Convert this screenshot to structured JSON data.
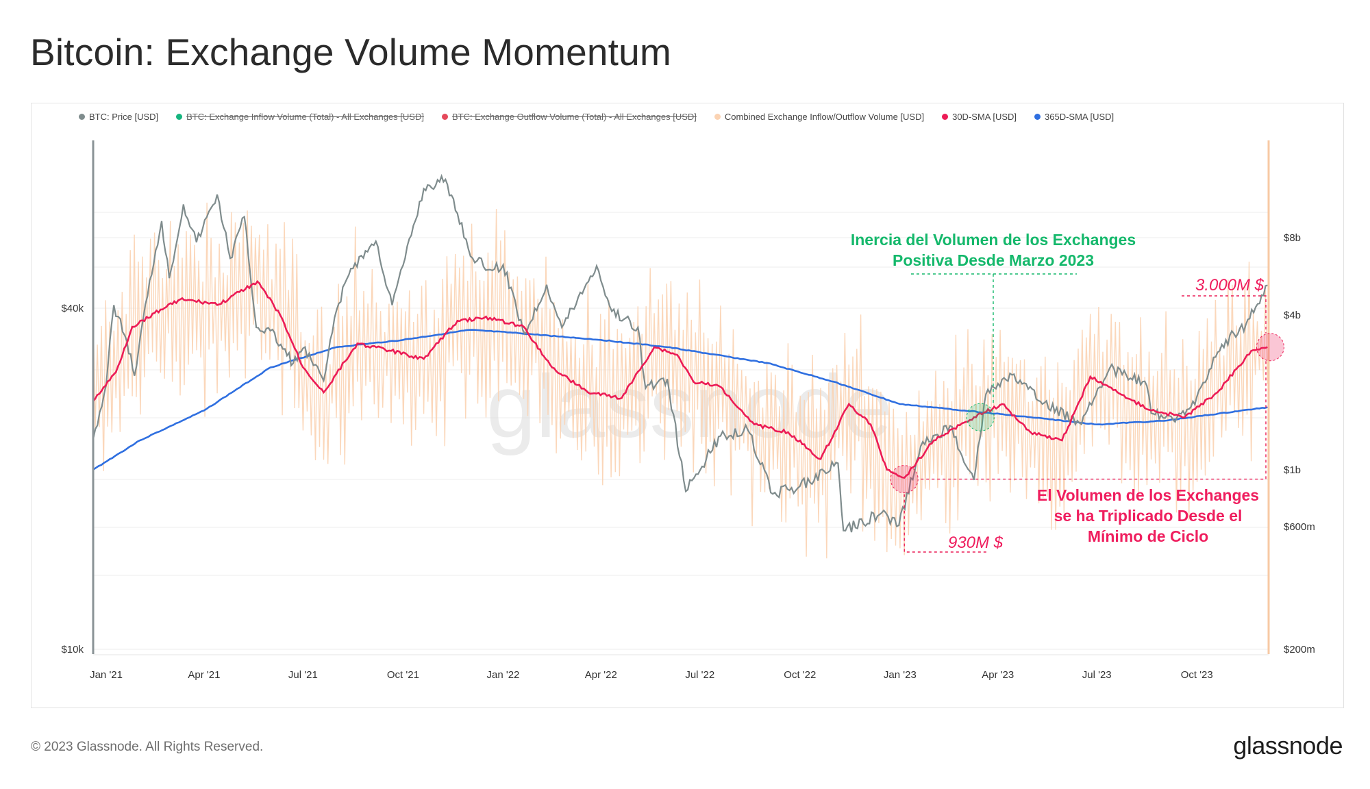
{
  "title": "Bitcoin: Exchange Volume Momentum",
  "footer": {
    "copyright": "© 2023 Glassnode. All Rights Reserved.",
    "logo_text": "glassnode"
  },
  "watermark": "glassnode",
  "chart_data": {
    "type": "line",
    "x_tick_labels": [
      "Jan '21",
      "Apr '21",
      "Jul '21",
      "Oct '21",
      "Jan '22",
      "Apr '22",
      "Jul '22",
      "Oct '22",
      "Jan '23",
      "Apr '23",
      "Jul '23",
      "Oct '23"
    ],
    "left_axis": {
      "scale": "log",
      "ticks": [
        {
          "value": 10000,
          "label": "$10k"
        },
        {
          "value": 40000,
          "label": "$40k"
        }
      ]
    },
    "right_axis": {
      "scale": "log",
      "ticks": [
        {
          "value": 200000000,
          "label": "$200m"
        },
        {
          "value": 600000000,
          "label": "$600m"
        },
        {
          "value": 1000000000,
          "label": "$1b"
        },
        {
          "value": 4000000000,
          "label": "$4b"
        },
        {
          "value": 8000000000,
          "label": "$8b"
        }
      ]
    },
    "legend": [
      {
        "name": "BTC: Price [USD]",
        "color": "#7f8c8d",
        "enabled": true
      },
      {
        "name": "BTC: Exchange Inflow Volume (Total) - All Exchanges [USD]",
        "color": "#16b57f",
        "enabled": false
      },
      {
        "name": "BTC: Exchange Outflow Volume (Total) - All Exchanges [USD]",
        "color": "#e5495b",
        "enabled": false
      },
      {
        "name": "Combined Exchange Inflow/Outflow Volume [USD]",
        "color": "#fbd3b3",
        "enabled": true
      },
      {
        "name": "30D-SMA [USD]",
        "color": "#ec1c56",
        "enabled": true
      },
      {
        "name": "365D-SMA [USD]",
        "color": "#2f6fe0",
        "enabled": true
      }
    ],
    "series": [
      {
        "name": "BTC: Price [USD]",
        "axis": "left",
        "color": "#7f8c8d",
        "points": [
          [
            "2020-12-20",
            23500
          ],
          [
            "2021-01-01",
            29300
          ],
          [
            "2021-01-08",
            40500
          ],
          [
            "2021-01-20",
            35000
          ],
          [
            "2021-01-27",
            30400
          ],
          [
            "2021-02-10",
            44800
          ],
          [
            "2021-02-21",
            57000
          ],
          [
            "2021-02-28",
            45200
          ],
          [
            "2021-03-13",
            61000
          ],
          [
            "2021-03-25",
            52300
          ],
          [
            "2021-04-13",
            63500
          ],
          [
            "2021-04-25",
            49000
          ],
          [
            "2021-05-08",
            58000
          ],
          [
            "2021-05-19",
            37000
          ],
          [
            "2021-06-01",
            36500
          ],
          [
            "2021-06-22",
            32000
          ],
          [
            "2021-07-01",
            34000
          ],
          [
            "2021-07-20",
            29800
          ],
          [
            "2021-08-01",
            39800
          ],
          [
            "2021-08-14",
            47000
          ],
          [
            "2021-09-06",
            52500
          ],
          [
            "2021-09-21",
            40500
          ],
          [
            "2021-10-01",
            47600
          ],
          [
            "2021-10-20",
            65000
          ],
          [
            "2021-11-09",
            67500
          ],
          [
            "2021-11-20",
            58800
          ],
          [
            "2021-12-04",
            49000
          ],
          [
            "2021-12-20",
            46800
          ],
          [
            "2022-01-01",
            47700
          ],
          [
            "2022-01-21",
            36000
          ],
          [
            "2022-02-10",
            44000
          ],
          [
            "2022-02-24",
            37000
          ],
          [
            "2022-03-28",
            47500
          ],
          [
            "2022-04-11",
            39500
          ],
          [
            "2022-05-05",
            37000
          ],
          [
            "2022-05-12",
            28900
          ],
          [
            "2022-06-01",
            30000
          ],
          [
            "2022-06-18",
            19000
          ],
          [
            "2022-07-20",
            23800
          ],
          [
            "2022-08-14",
            24400
          ],
          [
            "2022-09-06",
            18800
          ],
          [
            "2022-10-01",
            19400
          ],
          [
            "2022-11-05",
            21300
          ],
          [
            "2022-11-10",
            16200
          ],
          [
            "2022-12-15",
            17400
          ],
          [
            "2022-12-31",
            16550
          ],
          [
            "2023-01-20",
            22800
          ],
          [
            "2023-02-16",
            24800
          ],
          [
            "2023-03-10",
            19900
          ],
          [
            "2023-03-21",
            28200
          ],
          [
            "2023-04-14",
            30500
          ],
          [
            "2023-05-10",
            27400
          ],
          [
            "2023-06-15",
            25100
          ],
          [
            "2023-07-13",
            31400
          ],
          [
            "2023-08-16",
            29200
          ],
          [
            "2023-08-20",
            26100
          ],
          [
            "2023-09-11",
            25200
          ],
          [
            "2023-10-01",
            27900
          ],
          [
            "2023-10-24",
            34500
          ],
          [
            "2023-11-15",
            37400
          ],
          [
            "2023-12-05",
            43900
          ]
        ]
      },
      {
        "name": "30D-SMA [USD]",
        "axis": "right",
        "color": "#ec1c56",
        "points": [
          [
            "2020-12-20",
            1850000000
          ],
          [
            "2021-01-10",
            2400000000
          ],
          [
            "2021-01-25",
            3600000000
          ],
          [
            "2021-02-20",
            4200000000
          ],
          [
            "2021-03-10",
            4600000000
          ],
          [
            "2021-04-15",
            4400000000
          ],
          [
            "2021-05-20",
            5400000000
          ],
          [
            "2021-06-10",
            4000000000
          ],
          [
            "2021-07-01",
            2500000000
          ],
          [
            "2021-07-20",
            2000000000
          ],
          [
            "2021-08-20",
            3100000000
          ],
          [
            "2021-09-20",
            2900000000
          ],
          [
            "2021-10-20",
            2700000000
          ],
          [
            "2021-11-20",
            3800000000
          ],
          [
            "2021-12-20",
            3900000000
          ],
          [
            "2022-01-20",
            3600000000
          ],
          [
            "2022-02-15",
            2500000000
          ],
          [
            "2022-03-20",
            2000000000
          ],
          [
            "2022-04-20",
            1900000000
          ],
          [
            "2022-05-20",
            3000000000
          ],
          [
            "2022-06-10",
            2800000000
          ],
          [
            "2022-06-25",
            2200000000
          ],
          [
            "2022-07-20",
            2100000000
          ],
          [
            "2022-08-20",
            1500000000
          ],
          [
            "2022-09-20",
            1400000000
          ],
          [
            "2022-10-20",
            1100000000
          ],
          [
            "2022-11-15",
            1800000000
          ],
          [
            "2022-12-05",
            1500000000
          ],
          [
            "2022-12-20",
            1000000000
          ],
          [
            "2023-01-05",
            930000000
          ],
          [
            "2023-02-01",
            1300000000
          ],
          [
            "2023-03-10",
            1600000000
          ],
          [
            "2023-04-05",
            1800000000
          ],
          [
            "2023-05-01",
            1400000000
          ],
          [
            "2023-05-30",
            1300000000
          ],
          [
            "2023-06-25",
            2300000000
          ],
          [
            "2023-07-20",
            2000000000
          ],
          [
            "2023-08-20",
            1700000000
          ],
          [
            "2023-09-20",
            1600000000
          ],
          [
            "2023-10-20",
            2000000000
          ],
          [
            "2023-11-20",
            2900000000
          ],
          [
            "2023-12-05",
            3000000000
          ]
        ]
      },
      {
        "name": "365D-SMA [USD]",
        "axis": "right",
        "color": "#2f6fe0",
        "points": [
          [
            "2020-12-20",
            1000000000
          ],
          [
            "2021-02-01",
            1300000000
          ],
          [
            "2021-04-01",
            1700000000
          ],
          [
            "2021-06-01",
            2500000000
          ],
          [
            "2021-08-01",
            3000000000
          ],
          [
            "2021-10-01",
            3200000000
          ],
          [
            "2021-12-01",
            3500000000
          ],
          [
            "2022-01-15",
            3400000000
          ],
          [
            "2022-04-01",
            3200000000
          ],
          [
            "2022-06-01",
            3000000000
          ],
          [
            "2022-09-01",
            2600000000
          ],
          [
            "2022-11-01",
            2200000000
          ],
          [
            "2023-01-01",
            1800000000
          ],
          [
            "2023-03-01",
            1700000000
          ],
          [
            "2023-05-01",
            1600000000
          ],
          [
            "2023-07-01",
            1500000000
          ],
          [
            "2023-09-01",
            1550000000
          ],
          [
            "2023-12-05",
            1750000000
          ]
        ]
      },
      {
        "name": "Combined Exchange Inflow/Outflow Volume [USD]",
        "axis": "right",
        "color": "#fbd3b3",
        "range_note": "daily, oscillating roughly between $600m and $8b"
      }
    ],
    "annotations": {
      "green_title_line1": "Inercia del Volumen de los Exchanges",
      "green_title_line2": "Positiva Desde Marzo 2023",
      "red_title_line1": "El Volumen de los Exchanges",
      "red_title_line2": "se ha Triplicado Desde el",
      "red_title_line3": "Mínimo de Ciclo",
      "low_value_label": "930M $",
      "high_value_label": "3.000M $"
    }
  }
}
